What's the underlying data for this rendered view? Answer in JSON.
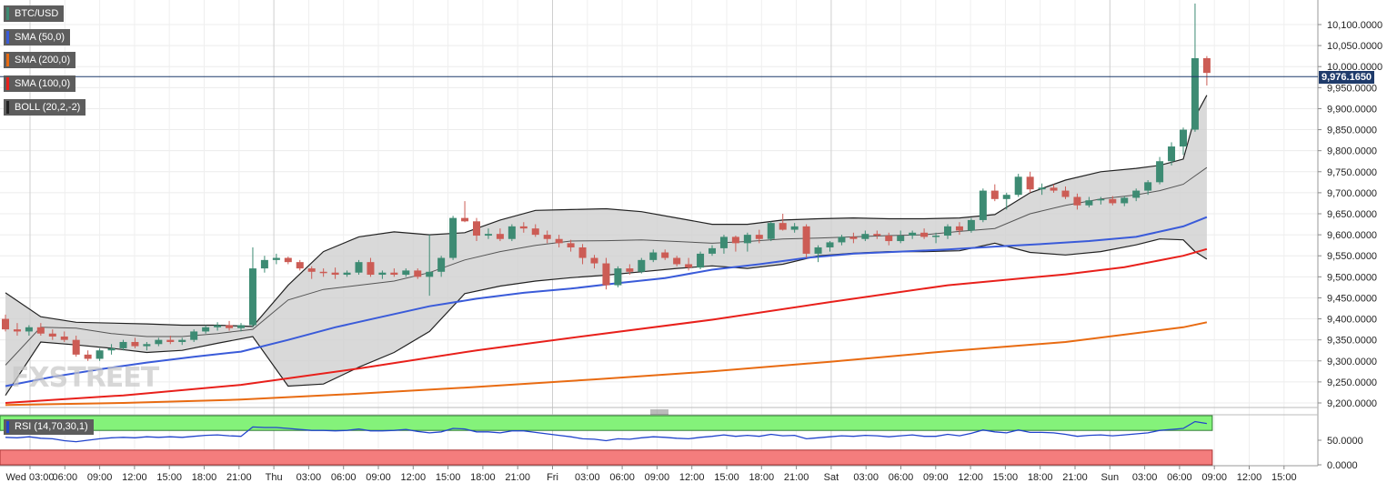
{
  "labels": {
    "symbol": "BTC/USD",
    "sma50": "SMA (50,0)",
    "sma200": "SMA (200,0)",
    "sma100": "SMA (100,0)",
    "boll": "BOLL (20,2,-2)",
    "rsi": "RSI (14,70,30,1)",
    "watermark": "FXSTREET",
    "last_price": "9,976.1650"
  },
  "colors": {
    "sma50": "#3a5bd9",
    "sma100": "#e8201b",
    "sma200": "#e86b12",
    "boll_fill": "#d0d0d0",
    "boll_line": "#222222",
    "up": "#3d8b73",
    "down": "#cc5c55",
    "rsi_line": "#2244cc",
    "rsi_overbought": "#84f27a",
    "rsi_oversold": "#f47d7d"
  },
  "chart_data": {
    "type": "line",
    "title": "BTC/USD",
    "price_axis": {
      "min": 9180,
      "max": 10120,
      "ticks": [
        "9,200.0000",
        "9,250.0000",
        "9,300.0000",
        "9,350.0000",
        "9,400.0000",
        "9,450.0000",
        "9,500.0000",
        "9,550.0000",
        "9,600.0000",
        "9,650.0000",
        "9,700.0000",
        "9,750.0000",
        "9,800.0000",
        "9,850.0000",
        "9,900.0000",
        "9,950.0000",
        "10,000.0000",
        "10,050.0000",
        "10,100.0000"
      ],
      "tick_values": [
        9200,
        9250,
        9300,
        9350,
        9400,
        9450,
        9500,
        9550,
        9600,
        9650,
        9700,
        9750,
        9800,
        9850,
        9900,
        9950,
        10000,
        10050,
        10100
      ]
    },
    "rsi_axis": {
      "ticks": [
        "50.0000",
        "0.0000"
      ],
      "tick_values": [
        50,
        0
      ]
    },
    "x_axis": {
      "labels": [
        "Wed 03:00",
        "06:00",
        "09:00",
        "12:00",
        "15:00",
        "18:00",
        "21:00",
        "Thu",
        "03:00",
        "06:00",
        "09:00",
        "12:00",
        "15:00",
        "18:00",
        "21:00",
        "Fri",
        "03:00",
        "06:00",
        "09:00",
        "12:00",
        "15:00",
        "18:00",
        "21:00",
        "Sat",
        "03:00",
        "06:00",
        "09:00",
        "12:00",
        "15:00",
        "18:00",
        "21:00",
        "Sun",
        "03:00",
        "06:00",
        "09:00",
        "12:00",
        "15:00"
      ]
    },
    "last_price": 9976.165,
    "candles": [
      [
        9400,
        9410,
        9370,
        9375
      ],
      [
        9375,
        9390,
        9360,
        9370
      ],
      [
        9370,
        9385,
        9360,
        9380
      ],
      [
        9380,
        9390,
        9360,
        9365
      ],
      [
        9365,
        9375,
        9350,
        9358
      ],
      [
        9358,
        9370,
        9345,
        9350
      ],
      [
        9350,
        9360,
        9310,
        9315
      ],
      [
        9315,
        9325,
        9300,
        9305
      ],
      [
        9305,
        9330,
        9300,
        9325
      ],
      [
        9325,
        9340,
        9315,
        9330
      ],
      [
        9330,
        9350,
        9325,
        9345
      ],
      [
        9345,
        9355,
        9330,
        9335
      ],
      [
        9335,
        9345,
        9325,
        9340
      ],
      [
        9340,
        9355,
        9335,
        9350
      ],
      [
        9350,
        9360,
        9340,
        9345
      ],
      [
        9345,
        9355,
        9338,
        9350
      ],
      [
        9350,
        9375,
        9345,
        9370
      ],
      [
        9370,
        9385,
        9365,
        9380
      ],
      [
        9380,
        9392,
        9372,
        9385
      ],
      [
        9385,
        9395,
        9372,
        9378
      ],
      [
        9378,
        9390,
        9370,
        9385
      ],
      [
        9385,
        9570,
        9380,
        9520
      ],
      [
        9520,
        9550,
        9510,
        9540
      ],
      [
        9540,
        9555,
        9530,
        9545
      ],
      [
        9545,
        9548,
        9530,
        9535
      ],
      [
        9535,
        9540,
        9515,
        9520
      ],
      [
        9520,
        9525,
        9495,
        9512
      ],
      [
        9512,
        9520,
        9500,
        9510
      ],
      [
        9510,
        9522,
        9495,
        9505
      ],
      [
        9505,
        9515,
        9500,
        9510
      ],
      [
        9510,
        9540,
        9505,
        9535
      ],
      [
        9535,
        9545,
        9500,
        9505
      ],
      [
        9505,
        9515,
        9495,
        9510
      ],
      [
        9510,
        9520,
        9500,
        9505
      ],
      [
        9505,
        9520,
        9500,
        9515
      ],
      [
        9515,
        9520,
        9495,
        9500
      ],
      [
        9500,
        9600,
        9455,
        9512
      ],
      [
        9512,
        9550,
        9500,
        9545
      ],
      [
        9545,
        9645,
        9540,
        9640
      ],
      [
        9640,
        9680,
        9630,
        9632
      ],
      [
        9632,
        9640,
        9585,
        9598
      ],
      [
        9598,
        9615,
        9590,
        9602
      ],
      [
        9602,
        9615,
        9585,
        9590
      ],
      [
        9590,
        9625,
        9585,
        9620
      ],
      [
        9620,
        9630,
        9605,
        9615
      ],
      [
        9615,
        9625,
        9595,
        9600
      ],
      [
        9600,
        9610,
        9580,
        9590
      ],
      [
        9590,
        9600,
        9570,
        9580
      ],
      [
        9580,
        9588,
        9560,
        9570
      ],
      [
        9570,
        9578,
        9530,
        9545
      ],
      [
        9545,
        9552,
        9520,
        9532
      ],
      [
        9532,
        9545,
        9470,
        9480
      ],
      [
        9480,
        9525,
        9475,
        9520
      ],
      [
        9520,
        9530,
        9505,
        9512
      ],
      [
        9512,
        9545,
        9508,
        9540
      ],
      [
        9540,
        9565,
        9535,
        9558
      ],
      [
        9558,
        9565,
        9540,
        9545
      ],
      [
        9545,
        9550,
        9525,
        9530
      ],
      [
        9530,
        9545,
        9515,
        9522
      ],
      [
        9522,
        9560,
        9518,
        9555
      ],
      [
        9555,
        9575,
        9550,
        9568
      ],
      [
        9568,
        9600,
        9555,
        9595
      ],
      [
        9595,
        9598,
        9560,
        9580
      ],
      [
        9580,
        9605,
        9560,
        9600
      ],
      [
        9600,
        9612,
        9580,
        9590
      ],
      [
        9590,
        9632,
        9585,
        9628
      ],
      [
        9628,
        9650,
        9610,
        9612
      ],
      [
        9612,
        9628,
        9605,
        9620
      ],
      [
        9620,
        9625,
        9545,
        9555
      ],
      [
        9555,
        9575,
        9535,
        9570
      ],
      [
        9570,
        9585,
        9560,
        9582
      ],
      [
        9582,
        9600,
        9575,
        9595
      ],
      [
        9595,
        9605,
        9580,
        9590
      ],
      [
        9590,
        9610,
        9585,
        9602
      ],
      [
        9602,
        9610,
        9590,
        9598
      ],
      [
        9598,
        9605,
        9575,
        9585
      ],
      [
        9585,
        9610,
        9580,
        9598
      ],
      [
        9598,
        9610,
        9590,
        9605
      ],
      [
        9605,
        9615,
        9590,
        9595
      ],
      [
        9595,
        9605,
        9580,
        9598
      ],
      [
        9598,
        9625,
        9590,
        9620
      ],
      [
        9620,
        9630,
        9600,
        9610
      ],
      [
        9610,
        9640,
        9605,
        9635
      ],
      [
        9635,
        9710,
        9630,
        9705
      ],
      [
        9705,
        9720,
        9680,
        9685
      ],
      [
        9685,
        9700,
        9660,
        9695
      ],
      [
        9695,
        9745,
        9690,
        9738
      ],
      [
        9738,
        9750,
        9700,
        9708
      ],
      [
        9708,
        9722,
        9695,
        9712
      ],
      [
        9712,
        9720,
        9700,
        9705
      ],
      [
        9705,
        9715,
        9685,
        9690
      ],
      [
        9690,
        9698,
        9660,
        9670
      ],
      [
        9670,
        9690,
        9665,
        9682
      ],
      [
        9682,
        9690,
        9672,
        9685
      ],
      [
        9685,
        9692,
        9670,
        9675
      ],
      [
        9675,
        9692,
        9668,
        9688
      ],
      [
        9688,
        9710,
        9680,
        9705
      ],
      [
        9705,
        9730,
        9695,
        9725
      ],
      [
        9725,
        9785,
        9720,
        9775
      ],
      [
        9775,
        9820,
        9765,
        9810
      ],
      [
        9810,
        9855,
        9790,
        9850
      ],
      [
        9850,
        10150,
        9845,
        10020
      ],
      [
        10020,
        10025,
        9955,
        9985
      ]
    ],
    "series": [
      {
        "name": "SMA (50,0)",
        "x": [
          0,
          4,
          8,
          12,
          16,
          20,
          24,
          28,
          32,
          36,
          40,
          44,
          48,
          52,
          56,
          60,
          64,
          68,
          72,
          76,
          80,
          84,
          88,
          92,
          96,
          100,
          102
        ],
        "values": [
          9240,
          9262,
          9280,
          9296,
          9310,
          9322,
          9350,
          9380,
          9405,
          9430,
          9448,
          9462,
          9472,
          9485,
          9497,
          9517,
          9530,
          9545,
          9555,
          9560,
          9565,
          9572,
          9578,
          9585,
          9595,
          9620,
          9642
        ]
      },
      {
        "name": "SMA (100,0)",
        "x": [
          0,
          10,
          20,
          30,
          40,
          50,
          60,
          70,
          80,
          90,
          95,
          100,
          102
        ],
        "values": [
          9200,
          9218,
          9243,
          9282,
          9325,
          9362,
          9398,
          9440,
          9480,
          9506,
          9523,
          9550,
          9566
        ]
      },
      {
        "name": "SMA (200,0)",
        "x": [
          0,
          10,
          20,
          30,
          40,
          50,
          60,
          70,
          80,
          90,
          100,
          102
        ],
        "values": [
          9195,
          9200,
          9208,
          9222,
          9238,
          9256,
          9275,
          9298,
          9323,
          9345,
          9380,
          9392
        ]
      }
    ],
    "bollinger": {
      "name": "BOLL (20,2,-2)",
      "x": [
        0,
        3,
        6,
        9,
        12,
        15,
        18,
        21,
        24,
        27,
        30,
        33,
        36,
        39,
        42,
        45,
        48,
        51,
        54,
        57,
        60,
        63,
        66,
        69,
        72,
        75,
        78,
        81,
        84,
        87,
        90,
        93,
        96,
        98,
        100,
        101,
        102
      ],
      "upper": [
        9462,
        9405,
        9392,
        9390,
        9388,
        9385,
        9385,
        9382,
        9480,
        9560,
        9595,
        9607,
        9600,
        9605,
        9635,
        9658,
        9660,
        9662,
        9655,
        9640,
        9625,
        9625,
        9635,
        9638,
        9640,
        9638,
        9638,
        9640,
        9648,
        9700,
        9730,
        9750,
        9758,
        9765,
        9780,
        9880,
        9932
      ],
      "middle": [
        9290,
        9380,
        9378,
        9365,
        9358,
        9358,
        9365,
        9375,
        9445,
        9470,
        9480,
        9490,
        9510,
        9540,
        9560,
        9575,
        9585,
        9586,
        9588,
        9584,
        9580,
        9584,
        9590,
        9592,
        9595,
        9598,
        9600,
        9608,
        9615,
        9650,
        9670,
        9685,
        9695,
        9705,
        9720,
        9740,
        9760
      ],
      "lower": [
        9218,
        9345,
        9338,
        9330,
        9320,
        9325,
        9342,
        9358,
        9240,
        9245,
        9285,
        9320,
        9370,
        9460,
        9478,
        9490,
        9498,
        9504,
        9512,
        9520,
        9526,
        9520,
        9530,
        9550,
        9556,
        9560,
        9560,
        9562,
        9580,
        9558,
        9552,
        9560,
        9576,
        9590,
        9588,
        9560,
        9542
      ]
    },
    "rsi": {
      "name": "RSI (14,70,30,1)",
      "overbought": 70,
      "oversold": 30,
      "values": [
        56,
        55,
        57,
        54,
        53,
        49,
        47,
        50,
        53,
        55,
        56,
        55,
        57,
        56,
        57,
        56,
        58,
        60,
        61,
        59,
        58,
        77,
        76,
        76,
        74,
        72,
        70,
        70,
        69,
        70,
        73,
        69,
        69,
        70,
        72,
        68,
        65,
        67,
        74,
        73,
        67,
        67,
        65,
        69,
        69,
        66,
        63,
        60,
        57,
        53,
        52,
        49,
        53,
        52,
        55,
        57,
        56,
        54,
        53,
        56,
        58,
        61,
        58,
        60,
        58,
        62,
        59,
        60,
        53,
        55,
        57,
        59,
        58,
        60,
        59,
        57,
        59,
        61,
        58,
        58,
        62,
        59,
        64,
        71,
        67,
        65,
        71,
        66,
        66,
        65,
        62,
        58,
        60,
        61,
        59,
        61,
        63,
        65,
        70,
        72,
        74,
        88,
        84
      ]
    },
    "rsi_levels": {
      "overbought_band": [
        70,
        100
      ],
      "oversold_band": [
        0,
        30
      ]
    }
  }
}
